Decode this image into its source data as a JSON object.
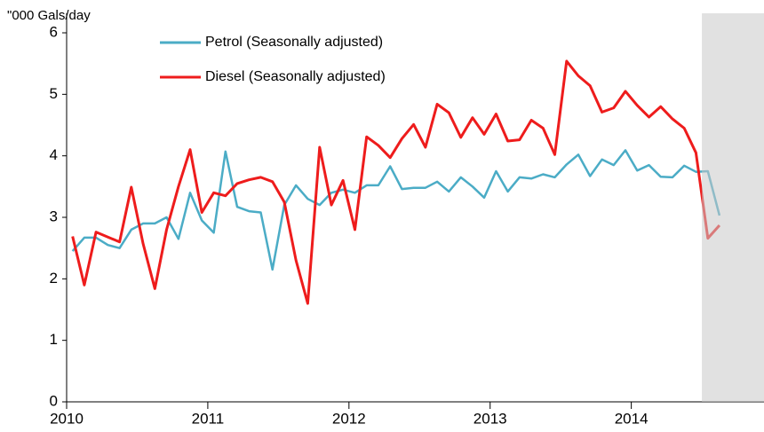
{
  "chart_data": {
    "type": "line",
    "y_label": "\"000 Gals/day",
    "x": [
      2010.042,
      2010.125,
      2010.208,
      2010.292,
      2010.375,
      2010.458,
      2010.542,
      2010.625,
      2010.708,
      2010.792,
      2010.875,
      2010.958,
      2011.042,
      2011.125,
      2011.208,
      2011.292,
      2011.375,
      2011.458,
      2011.542,
      2011.625,
      2011.708,
      2011.792,
      2011.875,
      2011.958,
      2012.042,
      2012.125,
      2012.208,
      2012.292,
      2012.375,
      2012.458,
      2012.542,
      2012.625,
      2012.708,
      2012.792,
      2012.875,
      2012.958,
      2013.042,
      2013.125,
      2013.208,
      2013.292,
      2013.375,
      2013.458,
      2013.542,
      2013.625,
      2013.708,
      2013.792,
      2013.875,
      2013.958,
      2014.042,
      2014.125,
      2014.208,
      2014.292,
      2014.375,
      2014.458,
      2014.542,
      2014.625
    ],
    "series": [
      {
        "name": "Petrol (Seasonally adjusted)",
        "color": "#4bacc6",
        "values": [
          2.45,
          2.67,
          2.67,
          2.55,
          2.5,
          2.8,
          2.9,
          2.9,
          3.0,
          2.65,
          3.4,
          2.95,
          2.75,
          4.07,
          3.17,
          3.1,
          3.08,
          2.15,
          3.2,
          3.52,
          3.3,
          3.2,
          3.4,
          3.45,
          3.4,
          3.52,
          3.52,
          3.83,
          3.46,
          3.48,
          3.48,
          3.58,
          3.42,
          3.65,
          3.5,
          3.32,
          3.75,
          3.42,
          3.65,
          3.63,
          3.7,
          3.65,
          3.86,
          4.02,
          3.67,
          3.94,
          3.85,
          4.09,
          3.76,
          3.85,
          3.66,
          3.65,
          3.84,
          3.74,
          3.75,
          3.03
        ]
      },
      {
        "name": "Diesel (Seasonally adjusted)",
        "color": "#ee1c1c",
        "values": [
          2.69,
          1.9,
          2.76,
          2.68,
          2.6,
          3.49,
          2.57,
          1.84,
          2.8,
          3.5,
          4.1,
          3.08,
          3.4,
          3.35,
          3.55,
          3.61,
          3.65,
          3.58,
          3.25,
          2.3,
          1.6,
          4.14,
          3.2,
          3.6,
          2.8,
          4.31,
          4.17,
          3.97,
          4.28,
          4.51,
          4.14,
          4.84,
          4.7,
          4.3,
          4.62,
          4.35,
          4.68,
          4.24,
          4.26,
          4.58,
          4.45,
          4.02,
          5.54,
          5.3,
          5.14,
          4.71,
          4.78,
          5.05,
          4.82,
          4.63,
          4.8,
          4.6,
          4.45,
          4.05,
          2.66,
          2.87
        ]
      }
    ],
    "xlim": [
      2010,
      2014.94
    ],
    "xticks": [
      2010,
      2011,
      2012,
      2013,
      2014
    ],
    "ylim": [
      0,
      6
    ],
    "yticks": [
      0,
      1,
      2,
      3,
      4,
      5,
      6
    ],
    "shaded_region": [
      2014.5,
      2014.94
    ],
    "legend": "upper left",
    "grid": false
  }
}
